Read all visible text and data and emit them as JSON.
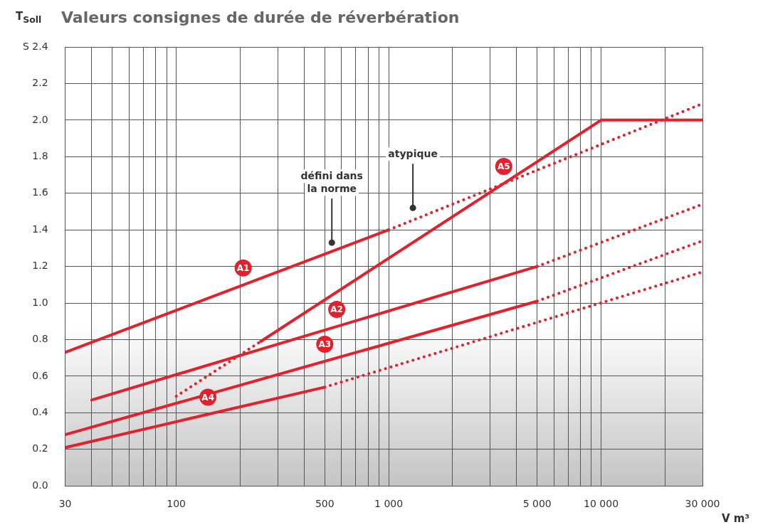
{
  "chart_data": {
    "type": "line",
    "title": "Valeurs consignes de durée de réverbération",
    "ylabel": "T$_{Soll}$",
    "xlabel": "V m³",
    "log": "x",
    "grid": true,
    "legend": false,
    "xlim": [
      30,
      30000
    ],
    "ylim": [
      0,
      2.4
    ],
    "xticks": [
      30,
      {
        "value": 40,
        "label": null
      },
      {
        "value": 50,
        "label": null
      },
      {
        "value": 60,
        "label": null
      },
      {
        "value": 70,
        "label": null
      },
      {
        "value": 80,
        "label": null
      },
      {
        "value": 90,
        "label": null
      },
      100,
      {
        "value": 200,
        "label": null
      },
      {
        "value": 300,
        "label": null
      },
      {
        "value": 400,
        "label": null
      },
      500,
      {
        "value": 600,
        "label": null
      },
      {
        "value": 700,
        "label": null
      },
      {
        "value": 800,
        "label": null
      },
      {
        "value": 900,
        "label": null
      },
      {
        "value": 1000,
        "label": "1 000"
      },
      {
        "value": 2000,
        "label": null
      },
      {
        "value": 3000,
        "label": null
      },
      {
        "value": 4000,
        "label": null
      },
      {
        "value": 5000,
        "label": "5 000"
      },
      {
        "value": 6000,
        "label": null
      },
      {
        "value": 7000,
        "label": null
      },
      {
        "value": 8000,
        "label": null
      },
      {
        "value": 9000,
        "label": null
      },
      {
        "value": 10000,
        "label": "10 000"
      },
      {
        "value": 20000,
        "label": null
      },
      {
        "value": 30000,
        "label": "30 000"
      }
    ],
    "yticks": [
      {
        "value": 0,
        "label": "0.0"
      },
      {
        "value": 0.2,
        "label": "0.2"
      },
      {
        "value": 0.4,
        "label": "0.4"
      },
      {
        "value": 0.6,
        "label": "0.6"
      },
      {
        "value": 0.8,
        "label": "0.8"
      },
      {
        "value": 1,
        "label": "1.0"
      },
      {
        "value": 1.2,
        "label": "1.2"
      },
      {
        "value": 1.4,
        "label": "1.4"
      },
      {
        "value": 1.6,
        "label": "1.6"
      },
      {
        "value": 1.8,
        "label": "1.8"
      },
      {
        "value": 2,
        "label": "2.0"
      },
      {
        "value": 2.2,
        "label": "2.2"
      },
      {
        "value": 2.4,
        "label": "S 2.4"
      }
    ],
    "series": [
      {
        "name": "A1",
        "color": "#e3202b",
        "line_style": "solid",
        "x": [
          30,
          1000
        ],
        "values": [
          0.73,
          1.4
        ]
      },
      {
        "color": "#e3202b",
        "line_style": "dotted",
        "x": [
          1000,
          30000
        ],
        "values": [
          1.4,
          2.09
        ]
      },
      {
        "name": "A5",
        "color": "#e3202b",
        "line_style": "solid",
        "x": [
          250,
          10000,
          30000
        ],
        "values": [
          0.79,
          2.0,
          2.0
        ]
      },
      {
        "color": "#e3202b",
        "line_style": "dotted",
        "x": [
          100,
          250
        ],
        "values": [
          0.49,
          0.79
        ]
      },
      {
        "name": "A2",
        "color": "#e3202b",
        "line_style": "solid",
        "x": [
          40,
          5000
        ],
        "values": [
          0.47,
          1.2
        ]
      },
      {
        "color": "#e3202b",
        "line_style": "dotted",
        "x": [
          5000,
          30000
        ],
        "values": [
          1.2,
          1.54
        ]
      },
      {
        "name": "A3",
        "color": "#e3202b",
        "line_style": "solid",
        "x": [
          30,
          5000
        ],
        "values": [
          0.28,
          1.01
        ]
      },
      {
        "color": "#e3202b",
        "line_style": "dotted",
        "x": [
          5000,
          30000
        ],
        "values": [
          1.01,
          1.34
        ]
      },
      {
        "name": "A4",
        "color": "#e3202b",
        "line_style": "solid",
        "x": [
          30,
          500
        ],
        "values": [
          0.21,
          0.54
        ]
      },
      {
        "color": "#e3202b",
        "line_style": "dotted",
        "x": [
          500,
          30000
        ],
        "values": [
          0.54,
          1.17
        ]
      }
    ],
    "annotations": [
      {
        "text": "défini dans la norme",
        "x": 540,
        "y": 1.33
      },
      {
        "text": "atypique",
        "x": 1300,
        "y": 1.52
      }
    ]
  }
}
